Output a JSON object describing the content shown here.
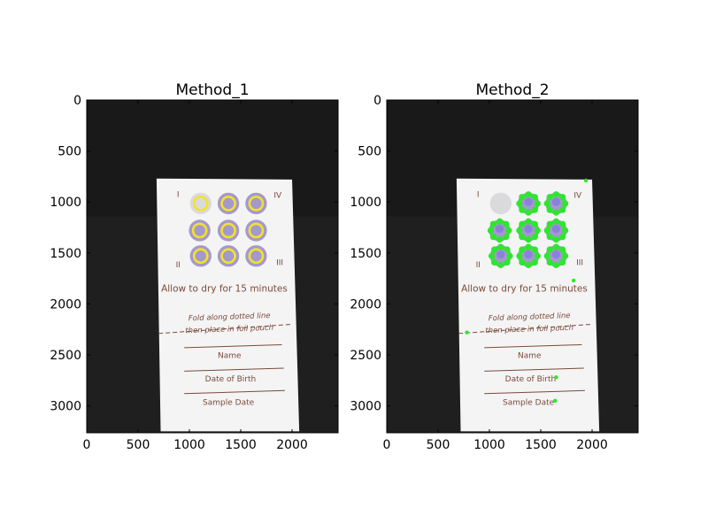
{
  "chart_data": [
    {
      "type": "image",
      "title": "Method_1",
      "xlim": [
        0,
        2448
      ],
      "ylim": [
        3264,
        0
      ],
      "xticks": [
        0,
        500,
        1000,
        1500,
        2000
      ],
      "yticks": [
        0,
        500,
        1000,
        1500,
        2000,
        2500,
        3000
      ],
      "detections": [
        {
          "x": 1110,
          "y": 1015
        },
        {
          "x": 1380,
          "y": 1015
        },
        {
          "x": 1650,
          "y": 1015
        },
        {
          "x": 1100,
          "y": 1280
        },
        {
          "x": 1380,
          "y": 1280
        },
        {
          "x": 1650,
          "y": 1280
        },
        {
          "x": 1110,
          "y": 1530
        },
        {
          "x": 1380,
          "y": 1530
        },
        {
          "x": 1650,
          "y": 1530
        }
      ],
      "marker_color": "#f2e22b",
      "marker_style": "ring"
    },
    {
      "type": "image",
      "title": "Method_2",
      "xlim": [
        0,
        2448
      ],
      "ylim": [
        3264,
        0
      ],
      "xticks": [
        0,
        500,
        1000,
        1500,
        2000
      ],
      "yticks": [
        0,
        500,
        1000,
        1500,
        2000,
        2500,
        3000
      ],
      "detections": [
        {
          "x": 1380,
          "y": 1015
        },
        {
          "x": 1650,
          "y": 1015
        },
        {
          "x": 1100,
          "y": 1280
        },
        {
          "x": 1380,
          "y": 1280
        },
        {
          "x": 1650,
          "y": 1280
        },
        {
          "x": 1110,
          "y": 1530
        },
        {
          "x": 1380,
          "y": 1530
        },
        {
          "x": 1650,
          "y": 1530
        }
      ],
      "stray_points": [
        {
          "x": 1940,
          "y": 790
        },
        {
          "x": 1820,
          "y": 1770
        },
        {
          "x": 780,
          "y": 2280
        },
        {
          "x": 1650,
          "y": 2720
        },
        {
          "x": 1640,
          "y": 2950
        }
      ],
      "marker_color": "#2ee62e",
      "marker_style": "blob"
    }
  ],
  "card": {
    "roman_1": "I",
    "roman_2": "II",
    "roman_3": "III",
    "roman_4": "IV",
    "instruction": "Allow to dry for 15 minutes",
    "fold_1": "Fold along dotted line",
    "fold_2": "then place in foil pouch",
    "field_name": "Name",
    "field_dob": "Date of Birth",
    "field_date": "Sample Date"
  },
  "colors": {
    "background": "#1f1f1f",
    "card": "#f4f4f4",
    "spot_fill": "#9f93c9",
    "empty_spot": "#d8d8da",
    "text": "#7a4a3c"
  }
}
